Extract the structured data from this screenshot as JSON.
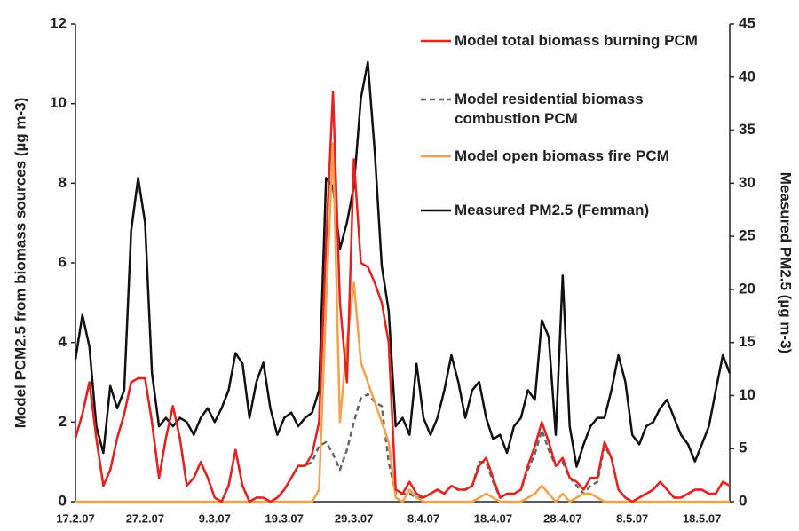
{
  "chart_data": {
    "type": "line",
    "y_label": "Model PCM2.5 from biomass sources (µg m-3)",
    "y2_label": "Measured PM2.5 (µg m-3)",
    "categories": [
      "17.2.07",
      null,
      null,
      null,
      null,
      null,
      null,
      null,
      null,
      null,
      "27.2.07",
      null,
      null,
      null,
      null,
      null,
      null,
      null,
      null,
      null,
      "9.3.07",
      null,
      null,
      null,
      null,
      null,
      null,
      null,
      null,
      null,
      "19.3.07",
      null,
      null,
      null,
      null,
      null,
      null,
      null,
      null,
      null,
      "29.3.07",
      null,
      null,
      null,
      null,
      null,
      null,
      null,
      null,
      null,
      "8.4.07",
      null,
      null,
      null,
      null,
      null,
      null,
      null,
      null,
      null,
      "18.4.07",
      null,
      null,
      null,
      null,
      null,
      null,
      null,
      null,
      null,
      "28.4.07",
      null,
      null,
      null,
      null,
      null,
      null,
      null,
      null,
      null,
      "8.5.07",
      null,
      null,
      null,
      null,
      null,
      null,
      null,
      null,
      null,
      "18.5.07",
      null,
      null,
      null,
      null
    ],
    "ylim": [
      0,
      12
    ],
    "yticks": [
      0,
      2,
      4,
      6,
      8,
      10,
      12
    ],
    "y2lim": [
      0,
      45
    ],
    "y2ticks": [
      0,
      5,
      10,
      15,
      20,
      25,
      30,
      35,
      40,
      45
    ],
    "series": [
      {
        "name": "Model total biomass burning PCM",
        "color": "#e8201e",
        "style": "solid",
        "values": [
          1.6,
          2.2,
          3.0,
          1.6,
          0.4,
          0.8,
          1.6,
          2.2,
          3.0,
          3.1,
          3.1,
          2.0,
          0.6,
          1.6,
          2.4,
          1.6,
          0.4,
          0.6,
          1.0,
          0.6,
          0.1,
          0.0,
          0.4,
          1.3,
          0.4,
          0.0,
          0.1,
          0.1,
          0.0,
          0.1,
          0.3,
          0.6,
          0.9,
          0.9,
          1.2,
          2.0,
          6.5,
          10.3,
          5.0,
          3.0,
          8.6,
          6.0,
          5.9,
          5.5,
          5.0,
          4.0,
          0.3,
          0.2,
          0.5,
          0.2,
          0.1,
          0.2,
          0.3,
          0.2,
          0.4,
          0.3,
          0.3,
          0.4,
          0.9,
          1.1,
          0.6,
          0.1,
          0.2,
          0.2,
          0.3,
          0.9,
          1.4,
          2.0,
          1.5,
          0.9,
          1.1,
          0.6,
          0.5,
          0.3,
          0.6,
          0.6,
          1.5,
          1.1,
          0.3,
          0.1,
          0.0,
          0.1,
          0.2,
          0.3,
          0.5,
          0.3,
          0.1,
          0.1,
          0.2,
          0.3,
          0.3,
          0.2,
          0.2,
          0.5,
          0.4
        ]
      },
      {
        "name": "Model residential biomass combustion PCM",
        "color": "#666666",
        "style": "dashed",
        "values": [
          1.6,
          2.2,
          3.0,
          1.6,
          0.4,
          0.8,
          1.6,
          2.2,
          3.0,
          3.1,
          3.1,
          2.0,
          0.6,
          1.6,
          2.4,
          1.6,
          0.4,
          0.6,
          1.0,
          0.6,
          0.1,
          0.0,
          0.4,
          1.3,
          0.4,
          0.0,
          0.1,
          0.1,
          0.0,
          0.1,
          0.3,
          0.6,
          0.9,
          0.9,
          1.0,
          1.4,
          1.5,
          1.2,
          0.8,
          1.3,
          2.0,
          2.6,
          2.7,
          2.5,
          2.4,
          1.0,
          0.2,
          0.2,
          0.2,
          0.1,
          0.1,
          0.2,
          0.3,
          0.2,
          0.4,
          0.3,
          0.3,
          0.4,
          1.0,
          1.0,
          0.5,
          0.1,
          0.2,
          0.2,
          0.3,
          0.8,
          1.2,
          1.8,
          1.3,
          0.9,
          1.0,
          0.6,
          0.4,
          0.2,
          0.4,
          0.5,
          1.4,
          1.1,
          0.3,
          0.1,
          0.0,
          0.1,
          0.2,
          0.3,
          0.5,
          0.3,
          0.1,
          0.1,
          0.2,
          0.3,
          0.3,
          0.2,
          0.2,
          0.5,
          0.4
        ]
      },
      {
        "name": "Model open biomass fire PCM",
        "color": "#f7a04a",
        "style": "solid",
        "values": [
          0,
          0,
          0,
          0,
          0,
          0,
          0,
          0,
          0,
          0,
          0,
          0,
          0,
          0,
          0,
          0,
          0,
          0,
          0,
          0,
          0,
          0,
          0,
          0,
          0,
          0,
          0,
          0,
          0,
          0,
          0,
          0,
          0,
          0,
          0,
          0.3,
          5.0,
          9.0,
          2.0,
          4.0,
          5.5,
          3.5,
          3.0,
          2.5,
          2.0,
          1.5,
          0.1,
          0,
          0.3,
          0.1,
          0,
          0,
          0,
          0,
          0,
          0,
          0,
          0,
          0.1,
          0.2,
          0.1,
          0,
          0,
          0,
          0,
          0.1,
          0.2,
          0.4,
          0.2,
          0,
          0.2,
          0,
          0.1,
          0.2,
          0.2,
          0.1,
          0,
          0,
          0,
          0,
          0,
          0,
          0,
          0,
          0,
          0,
          0,
          0,
          0,
          0,
          0,
          0,
          0,
          0,
          0
        ]
      },
      {
        "name": "Measured PM2.5 (Femman)",
        "color": "#111111",
        "style": "solid",
        "axis": "y2",
        "values": [
          13.4,
          17.6,
          14.6,
          7.1,
          4.6,
          10.9,
          8.8,
          10.5,
          25.5,
          30.5,
          26.3,
          12.1,
          7.1,
          7.9,
          7.1,
          7.9,
          7.5,
          6.3,
          7.9,
          8.8,
          7.5,
          8.8,
          10.5,
          14.0,
          13.0,
          7.9,
          11.3,
          13.1,
          8.8,
          6.3,
          7.9,
          8.4,
          7.1,
          7.9,
          8.4,
          10.5,
          30.5,
          29.7,
          23.8,
          26.3,
          29.7,
          38.0,
          41.4,
          33.0,
          22.2,
          18.0,
          7.1,
          7.9,
          6.3,
          13.0,
          7.9,
          6.3,
          7.9,
          10.5,
          13.8,
          11.3,
          7.9,
          10.5,
          11.3,
          7.9,
          5.9,
          6.3,
          4.6,
          7.1,
          7.9,
          10.5,
          9.6,
          17.1,
          15.5,
          6.3,
          21.3,
          7.1,
          3.3,
          5.4,
          7.1,
          7.9,
          7.9,
          10.5,
          13.8,
          11.3,
          6.3,
          5.4,
          7.1,
          7.5,
          8.8,
          9.6,
          7.9,
          6.3,
          5.4,
          3.8,
          5.4,
          7.1,
          10.5,
          13.8,
          12.1
        ]
      }
    ]
  }
}
